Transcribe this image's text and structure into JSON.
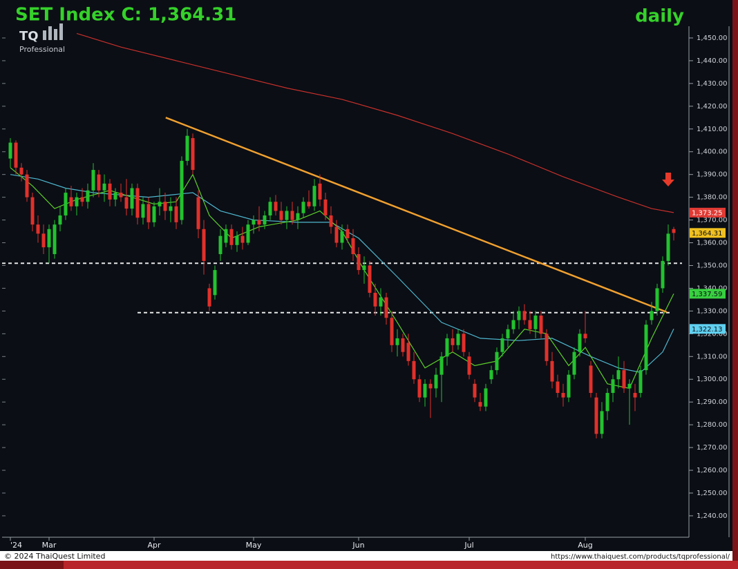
{
  "chart_data": {
    "type": "candlestick",
    "title": "SET Index C: 1,364.31",
    "period": "daily",
    "logo": "TQ",
    "logo_sub": "Professional",
    "copyright": "© 2024 ThaiQuest Limited",
    "url": "https://www.thaiquest.com/products/tqprofessional/",
    "up_color": "#22c22e",
    "down_color": "#e2302a",
    "xlim": [
      -1.5,
      122.5
    ],
    "xticks": [
      {
        "value": 0,
        "label": "'24"
      },
      {
        "value": 7,
        "label": "Mar"
      },
      {
        "value": 26,
        "label": "Apr"
      },
      {
        "value": 44,
        "label": "May"
      },
      {
        "value": 63,
        "label": "Jun"
      },
      {
        "value": 83,
        "label": "Jul"
      },
      {
        "value": 104,
        "label": "Aug"
      }
    ],
    "ylim": [
      1231,
      1455
    ],
    "yticks": [
      {
        "value": 1240,
        "label": "1,240.00"
      },
      {
        "value": 1250,
        "label": "1,250.00"
      },
      {
        "value": 1260,
        "label": "1,260.00"
      },
      {
        "value": 1270,
        "label": "1,270.00"
      },
      {
        "value": 1280,
        "label": "1,280.00"
      },
      {
        "value": 1290,
        "label": "1,290.00"
      },
      {
        "value": 1300,
        "label": "1,300.00"
      },
      {
        "value": 1310,
        "label": "1,310.00"
      },
      {
        "value": 1320,
        "label": "1,320.00"
      },
      {
        "value": 1330,
        "label": "1,330.00"
      },
      {
        "value": 1340,
        "label": "1,340.00"
      },
      {
        "value": 1350,
        "label": "1,350.00"
      },
      {
        "value": 1360,
        "label": "1,360.00"
      },
      {
        "value": 1370,
        "label": "1,370.00"
      },
      {
        "value": 1380,
        "label": "1,380.00"
      },
      {
        "value": 1390,
        "label": "1,390.00"
      },
      {
        "value": 1400,
        "label": "1,400.00"
      },
      {
        "value": 1410,
        "label": "1,410.00"
      },
      {
        "value": 1420,
        "label": "1,420.00"
      },
      {
        "value": 1430,
        "label": "1,430.00"
      },
      {
        "value": 1440,
        "label": "1,440.00"
      },
      {
        "value": 1450,
        "label": "1,450.00"
      }
    ],
    "grid": false,
    "candles": [
      [
        1397,
        1406,
        1393,
        1404
      ],
      [
        1404,
        1405,
        1390,
        1393
      ],
      [
        1393,
        1395,
        1387,
        1390
      ],
      [
        1390,
        1392,
        1378,
        1380
      ],
      [
        1380,
        1382,
        1365,
        1368
      ],
      [
        1368,
        1372,
        1360,
        1364
      ],
      [
        1364,
        1368,
        1355,
        1358
      ],
      [
        1358,
        1368,
        1351,
        1366
      ],
      [
        1355,
        1370,
        1353,
        1368
      ],
      [
        1368,
        1376,
        1365,
        1372
      ],
      [
        1372,
        1384,
        1370,
        1382
      ],
      [
        1380,
        1385,
        1374,
        1376
      ],
      [
        1376,
        1382,
        1372,
        1380
      ],
      [
        1380,
        1384,
        1376,
        1378
      ],
      [
        1378,
        1386,
        1375,
        1383
      ],
      [
        1383,
        1395,
        1380,
        1392
      ],
      [
        1390,
        1392,
        1380,
        1383
      ],
      [
        1383,
        1390,
        1378,
        1386
      ],
      [
        1386,
        1388,
        1376,
        1379
      ],
      [
        1379,
        1384,
        1376,
        1382
      ],
      [
        1382,
        1386,
        1378,
        1380
      ],
      [
        1380,
        1388,
        1372,
        1375
      ],
      [
        1375,
        1386,
        1372,
        1384
      ],
      [
        1384,
        1386,
        1368,
        1371
      ],
      [
        1371,
        1380,
        1368,
        1377
      ],
      [
        1377,
        1380,
        1366,
        1369
      ],
      [
        1369,
        1378,
        1367,
        1376
      ],
      [
        1376,
        1384,
        1372,
        1378
      ],
      [
        1378,
        1382,
        1370,
        1374
      ],
      [
        1374,
        1380,
        1369,
        1376
      ],
      [
        1376,
        1380,
        1366,
        1369
      ],
      [
        1370,
        1398,
        1368,
        1396
      ],
      [
        1396,
        1410,
        1394,
        1407
      ],
      [
        1406,
        1408,
        1390,
        1392
      ],
      [
        1380,
        1383,
        1362,
        1366
      ],
      [
        1366,
        1370,
        1346,
        1352
      ],
      [
        1340,
        1342,
        1330,
        1332
      ],
      [
        1337,
        1350,
        1335,
        1348
      ],
      [
        1355,
        1366,
        1352,
        1363
      ],
      [
        1360,
        1368,
        1358,
        1366
      ],
      [
        1366,
        1368,
        1357,
        1359
      ],
      [
        1359,
        1365,
        1356,
        1363
      ],
      [
        1363,
        1367,
        1357,
        1360
      ],
      [
        1360,
        1370,
        1359,
        1368
      ],
      [
        1368,
        1372,
        1364,
        1370
      ],
      [
        1370,
        1376,
        1365,
        1368
      ],
      [
        1368,
        1374,
        1366,
        1372
      ],
      [
        1372,
        1380,
        1370,
        1378
      ],
      [
        1378,
        1381,
        1372,
        1374
      ],
      [
        1374,
        1378,
        1368,
        1370
      ],
      [
        1370,
        1376,
        1366,
        1374
      ],
      [
        1374,
        1378,
        1368,
        1370
      ],
      [
        1370,
        1376,
        1366,
        1373
      ],
      [
        1373,
        1380,
        1371,
        1378
      ],
      [
        1378,
        1383,
        1375,
        1376
      ],
      [
        1376,
        1388,
        1374,
        1385
      ],
      [
        1386,
        1390,
        1376,
        1379
      ],
      [
        1379,
        1382,
        1370,
        1372
      ],
      [
        1372,
        1376,
        1364,
        1367
      ],
      [
        1367,
        1370,
        1358,
        1360
      ],
      [
        1360,
        1368,
        1357,
        1365
      ],
      [
        1366,
        1368,
        1360,
        1362
      ],
      [
        1362,
        1366,
        1352,
        1355
      ],
      [
        1355,
        1358,
        1346,
        1348
      ],
      [
        1348,
        1354,
        1342,
        1350
      ],
      [
        1350,
        1352,
        1336,
        1338
      ],
      [
        1338,
        1342,
        1328,
        1332
      ],
      [
        1332,
        1340,
        1328,
        1336
      ],
      [
        1336,
        1338,
        1324,
        1327
      ],
      [
        1327,
        1330,
        1312,
        1315
      ],
      [
        1315,
        1322,
        1310,
        1318
      ],
      [
        1318,
        1320,
        1310,
        1312
      ],
      [
        1316,
        1320,
        1306,
        1308
      ],
      [
        1308,
        1312,
        1298,
        1300
      ],
      [
        1300,
        1302,
        1290,
        1292
      ],
      [
        1292,
        1300,
        1288,
        1298
      ],
      [
        1298,
        1300,
        1283,
        1296
      ],
      [
        1296,
        1305,
        1292,
        1302
      ],
      [
        1302,
        1312,
        1290,
        1310
      ],
      [
        1310,
        1320,
        1306,
        1318
      ],
      [
        1318,
        1322,
        1312,
        1315
      ],
      [
        1315,
        1322,
        1313,
        1320
      ],
      [
        1320,
        1322,
        1310,
        1312
      ],
      [
        1310,
        1312,
        1300,
        1302
      ],
      [
        1298,
        1300,
        1290,
        1292
      ],
      [
        1290,
        1294,
        1286,
        1288
      ],
      [
        1288,
        1298,
        1286,
        1296
      ],
      [
        1300,
        1306,
        1298,
        1304
      ],
      [
        1304,
        1314,
        1302,
        1312
      ],
      [
        1312,
        1320,
        1310,
        1318
      ],
      [
        1318,
        1324,
        1314,
        1322
      ],
      [
        1322,
        1330,
        1320,
        1326
      ],
      [
        1326,
        1332,
        1322,
        1330
      ],
      [
        1330,
        1333,
        1324,
        1326
      ],
      [
        1326,
        1330,
        1320,
        1322
      ],
      [
        1322,
        1330,
        1318,
        1328
      ],
      [
        1328,
        1330,
        1318,
        1320
      ],
      [
        1320,
        1322,
        1306,
        1308
      ],
      [
        1308,
        1312,
        1296,
        1299
      ],
      [
        1299,
        1302,
        1292,
        1294
      ],
      [
        1294,
        1298,
        1288,
        1292
      ],
      [
        1292,
        1304,
        1290,
        1302
      ],
      [
        1302,
        1314,
        1300,
        1312
      ],
      [
        1312,
        1322,
        1310,
        1320
      ],
      [
        1320,
        1330,
        1316,
        1318
      ],
      [
        1306,
        1308,
        1292,
        1294
      ],
      [
        1292,
        1294,
        1274,
        1276
      ],
      [
        1276,
        1290,
        1274,
        1286
      ],
      [
        1286,
        1296,
        1282,
        1294
      ],
      [
        1294,
        1302,
        1290,
        1300
      ],
      [
        1300,
        1310,
        1296,
        1304
      ],
      [
        1304,
        1308,
        1294,
        1296
      ],
      [
        1296,
        1300,
        1280,
        1298
      ],
      [
        1294,
        1298,
        1286,
        1292
      ],
      [
        1294,
        1306,
        1292,
        1304
      ],
      [
        1304,
        1326,
        1302,
        1324
      ],
      [
        1326,
        1334,
        1324,
        1330
      ],
      [
        1330,
        1342,
        1328,
        1340
      ],
      [
        1340,
        1354,
        1338,
        1352
      ],
      [
        1352,
        1368,
        1350,
        1364
      ],
      [
        1366,
        1367,
        1361,
        1364.31
      ]
    ],
    "series": [
      {
        "color": "#c8302a",
        "x": [
          12,
          20,
          30,
          40,
          50,
          60,
          70,
          80,
          90,
          100,
          110,
          116,
          120
        ],
        "values": [
          1452,
          1446,
          1440,
          1434,
          1428,
          1423,
          1416,
          1408,
          1399,
          1389,
          1380,
          1375,
          1373.25
        ]
      },
      {
        "color": "#4fb8d0",
        "x": [
          0,
          5,
          10,
          15,
          25,
          33,
          38,
          44,
          52,
          58,
          63,
          70,
          78,
          85,
          92,
          98,
          105,
          110,
          114,
          118,
          120
        ],
        "values": [
          1390,
          1388,
          1384,
          1382,
          1380,
          1382,
          1374,
          1370,
          1369,
          1369,
          1362,
          1345,
          1325,
          1318,
          1317,
          1318,
          1310,
          1305,
          1303,
          1312,
          1322.13
        ]
      },
      {
        "color": "#5cd02a",
        "x": [
          0,
          4,
          8,
          12,
          18,
          26,
          30,
          33,
          36,
          40,
          45,
          52,
          56,
          60,
          64,
          70,
          75,
          80,
          84,
          88,
          93,
          97,
          101,
          104,
          108,
          112,
          116,
          120
        ],
        "values": [
          1393,
          1385,
          1375,
          1379,
          1383,
          1377,
          1378,
          1390,
          1372,
          1362,
          1367,
          1370,
          1374,
          1365,
          1348,
          1325,
          1305,
          1312,
          1306,
          1308,
          1322,
          1320,
          1306,
          1314,
          1298,
          1296,
          1318,
          1337.59
        ]
      }
    ],
    "price_tags": [
      {
        "value": 1373.25,
        "label": "1,373.25",
        "color": "#e03a34"
      },
      {
        "value": 1364.31,
        "label": "1,364.31",
        "color": "#f0c020"
      },
      {
        "value": 1337.59,
        "label": "1,337.59",
        "color": "#38d040"
      },
      {
        "value": 1322.13,
        "label": "1,322.13",
        "color": "#60d0f0"
      }
    ],
    "trendline": {
      "color": "#f0a030",
      "x": [
        28.1,
        118.75
      ],
      "values": [
        1415,
        1329.5
      ]
    },
    "hlines": [
      {
        "value": 1351,
        "x": [
          -1.5,
          121.5
        ]
      },
      {
        "value": 1329.3,
        "x": [
          23,
          119.5
        ]
      }
    ]
  }
}
